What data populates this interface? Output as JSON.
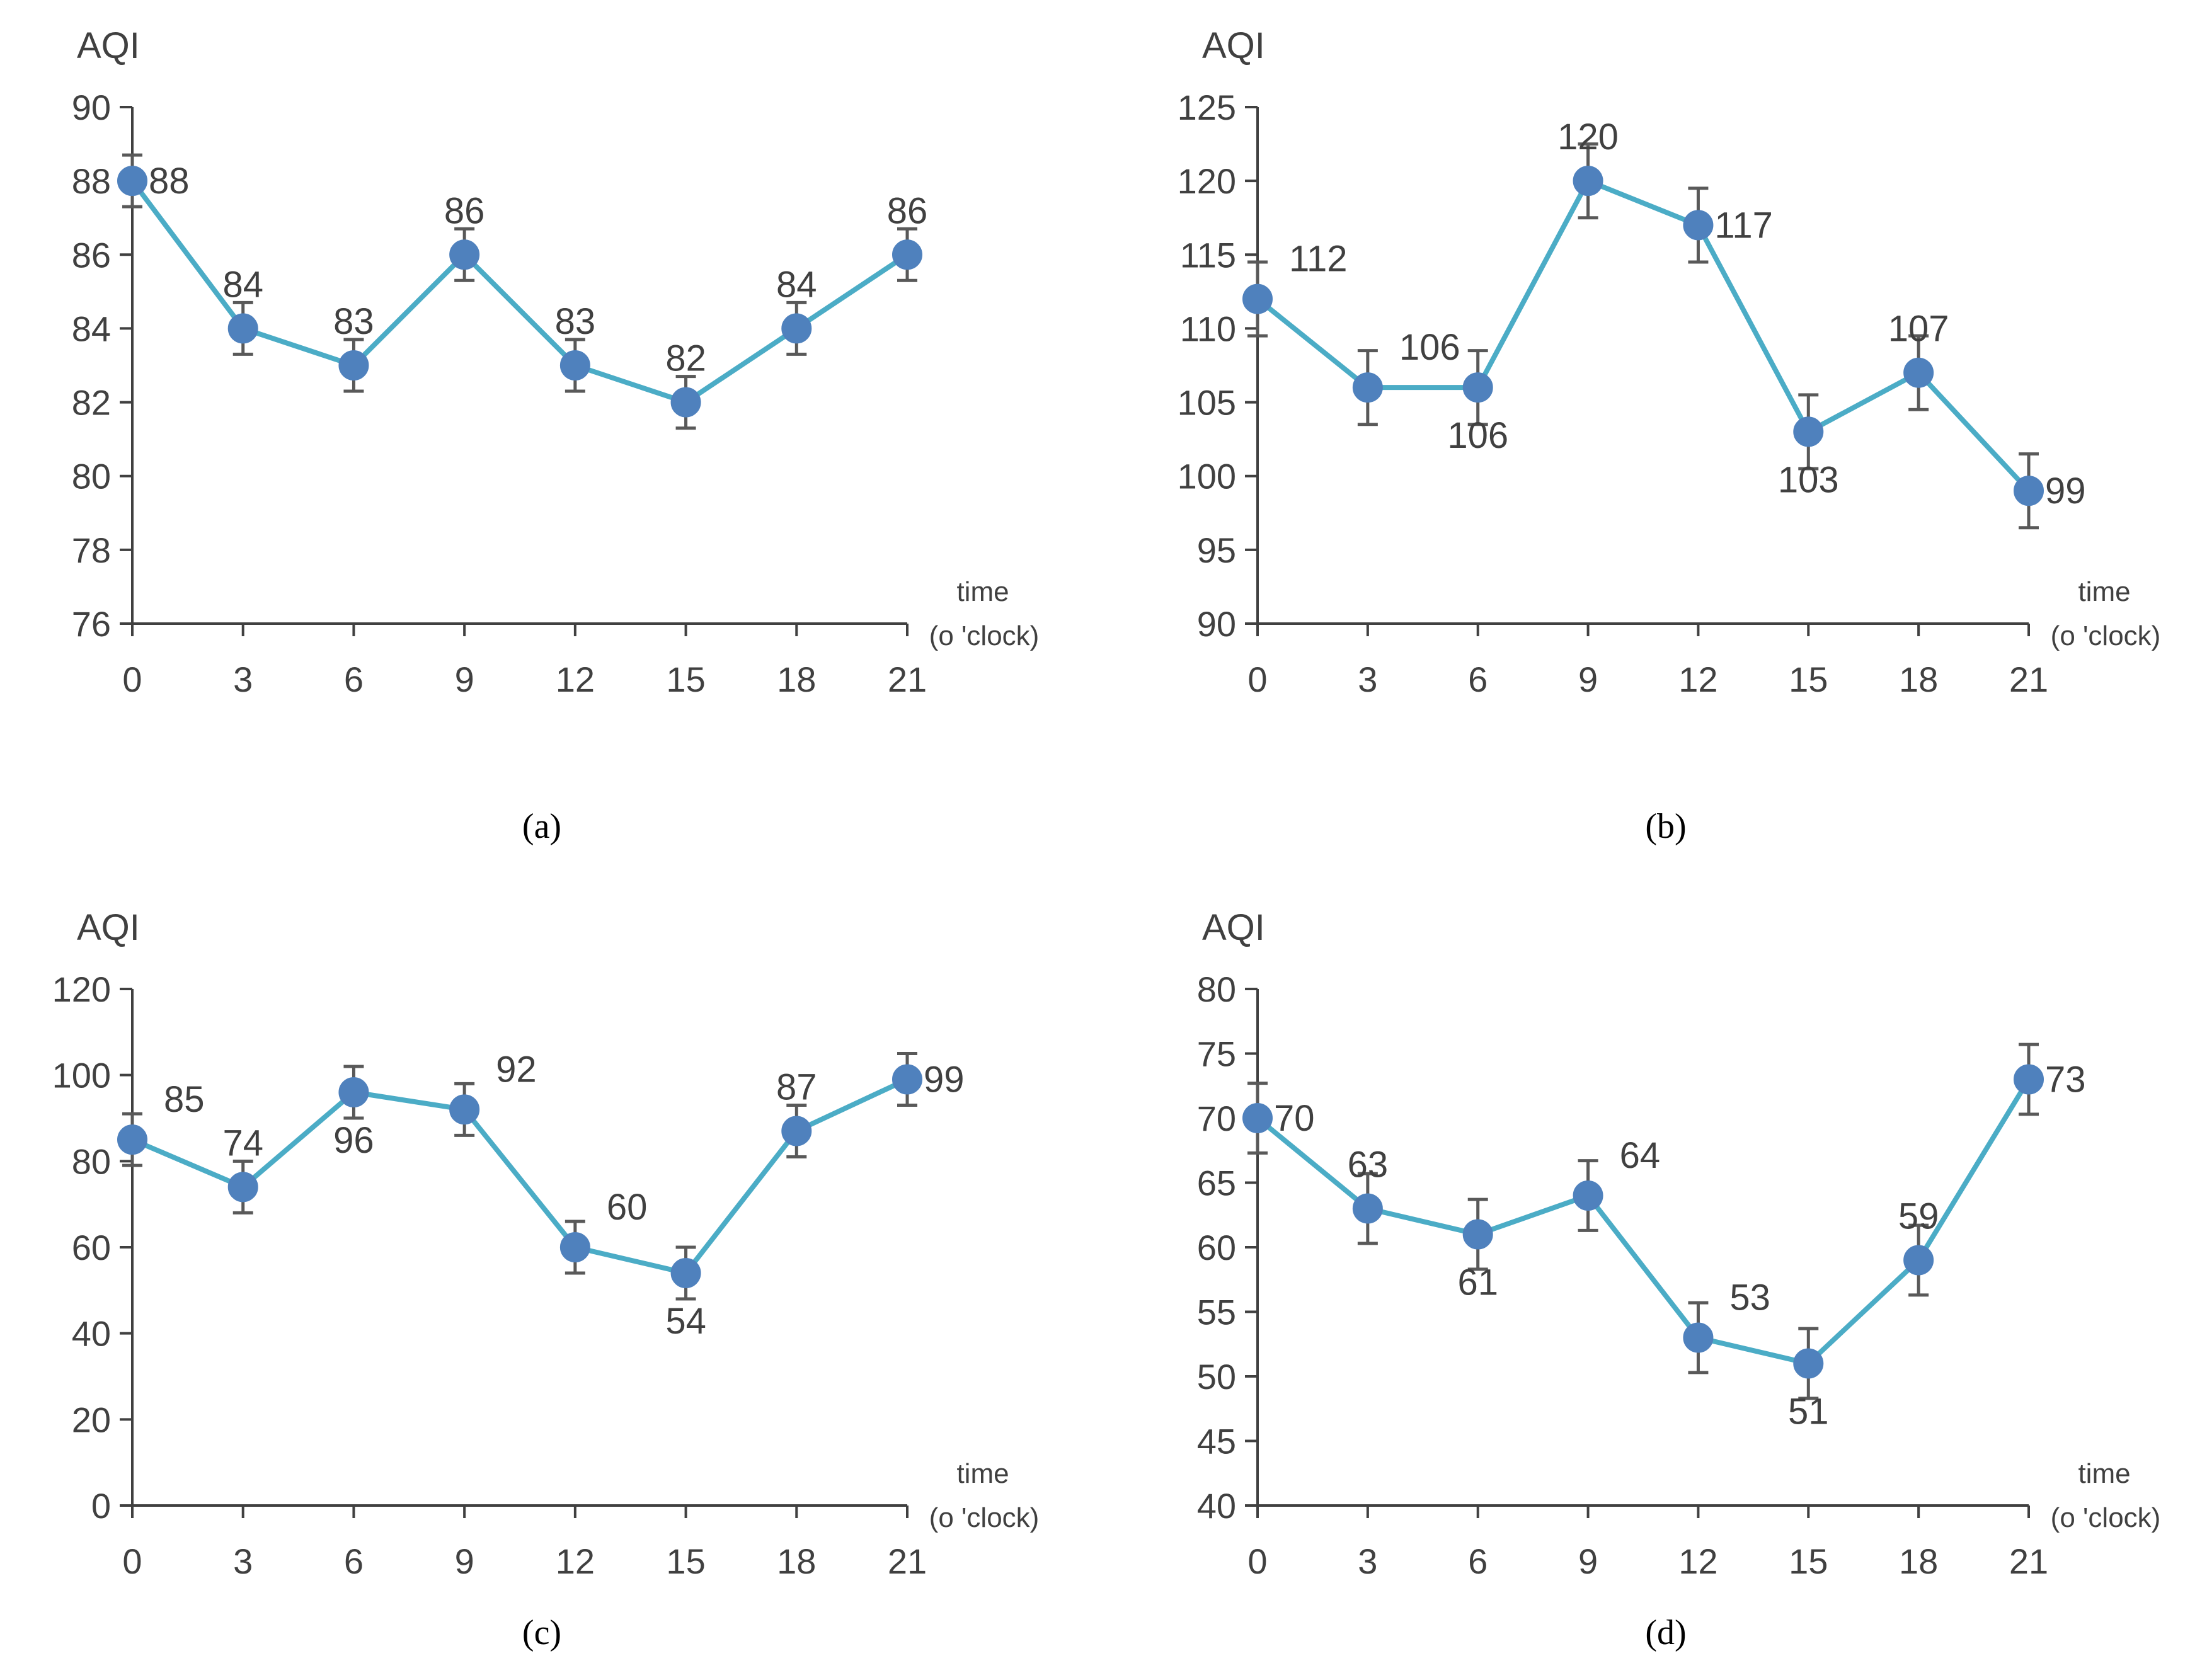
{
  "colors": {
    "line": "#4BACC6",
    "marker": "#4F81BD",
    "error_bar": "#595959",
    "axis": "#404040",
    "text": "#404040"
  },
  "chart_data": [
    {
      "type": "line",
      "caption": "(a)",
      "ylabel": "AQI",
      "xlabel_line1": "time",
      "xlabel_line2": "(o 'clock)",
      "x": [
        0,
        3,
        6,
        9,
        12,
        15,
        18,
        21
      ],
      "x_ticks": [
        "0",
        "3",
        "6",
        "9",
        "12",
        "15",
        "18",
        "21"
      ],
      "ylim": [
        76,
        90
      ],
      "y_ticks": [
        "76",
        "78",
        "80",
        "82",
        "84",
        "86",
        "88",
        "90"
      ],
      "values": [
        88,
        84,
        83,
        86,
        83,
        82,
        84,
        86
      ],
      "labels": [
        "88",
        "84",
        "83",
        "86",
        "83",
        "82",
        "84",
        "86"
      ],
      "label_pos": [
        "right",
        "above",
        "above",
        "above",
        "above",
        "above",
        "above",
        "above"
      ],
      "error": 0.7
    },
    {
      "type": "line",
      "caption": "(b)",
      "ylabel": "AQI",
      "xlabel_line1": "time",
      "xlabel_line2": "(o 'clock)",
      "x": [
        0,
        3,
        6,
        9,
        12,
        15,
        18,
        21
      ],
      "x_ticks": [
        "0",
        "3",
        "6",
        "9",
        "12",
        "15",
        "18",
        "21"
      ],
      "ylim": [
        90,
        125
      ],
      "y_ticks": [
        "90",
        "95",
        "100",
        "105",
        "110",
        "115",
        "120",
        "125"
      ],
      "values": [
        112,
        106,
        106,
        120,
        117,
        103,
        107,
        99
      ],
      "labels": [
        "112",
        "106",
        "106",
        "120",
        "117",
        "103",
        "107",
        "99"
      ],
      "label_pos": [
        "above-right",
        "above-right",
        "below",
        "above",
        "right",
        "below",
        "above",
        "right"
      ],
      "error": 2.5
    },
    {
      "type": "line",
      "caption": "(c)",
      "ylabel": "AQI",
      "xlabel_line1": "time",
      "xlabel_line2": "(o 'clock)",
      "x": [
        0,
        3,
        6,
        9,
        12,
        15,
        18,
        21
      ],
      "x_ticks": [
        "0",
        "3",
        "6",
        "9",
        "12",
        "15",
        "18",
        "21"
      ],
      "ylim": [
        0,
        120
      ],
      "y_ticks": [
        "0",
        "20",
        "40",
        "60",
        "80",
        "100",
        "120"
      ],
      "values": [
        85,
        74,
        96,
        92,
        60,
        54,
        87,
        99
      ],
      "labels": [
        "85",
        "74",
        "96",
        "92",
        "60",
        "54",
        "87",
        "99"
      ],
      "label_pos": [
        "above-right",
        "above",
        "below",
        "above-right",
        "above-right",
        "below",
        "above",
        "right"
      ],
      "error": 6
    },
    {
      "type": "line",
      "caption": "(d)",
      "ylabel": "AQI",
      "xlabel_line1": "time",
      "xlabel_line2": "(o 'clock)",
      "x": [
        0,
        3,
        6,
        9,
        12,
        15,
        18,
        21
      ],
      "x_ticks": [
        "0",
        "3",
        "6",
        "9",
        "12",
        "15",
        "18",
        "21"
      ],
      "ylim": [
        40,
        80
      ],
      "y_ticks": [
        "40",
        "45",
        "50",
        "55",
        "60",
        "65",
        "70",
        "75",
        "80"
      ],
      "values": [
        70,
        63,
        61,
        64,
        53,
        51,
        59,
        73
      ],
      "labels": [
        "70",
        "63",
        "61",
        "64",
        "53",
        "51",
        "59",
        "73"
      ],
      "label_pos": [
        "right",
        "above",
        "below",
        "above-right",
        "above-right",
        "below",
        "above",
        "right"
      ],
      "error": 2.7
    }
  ]
}
